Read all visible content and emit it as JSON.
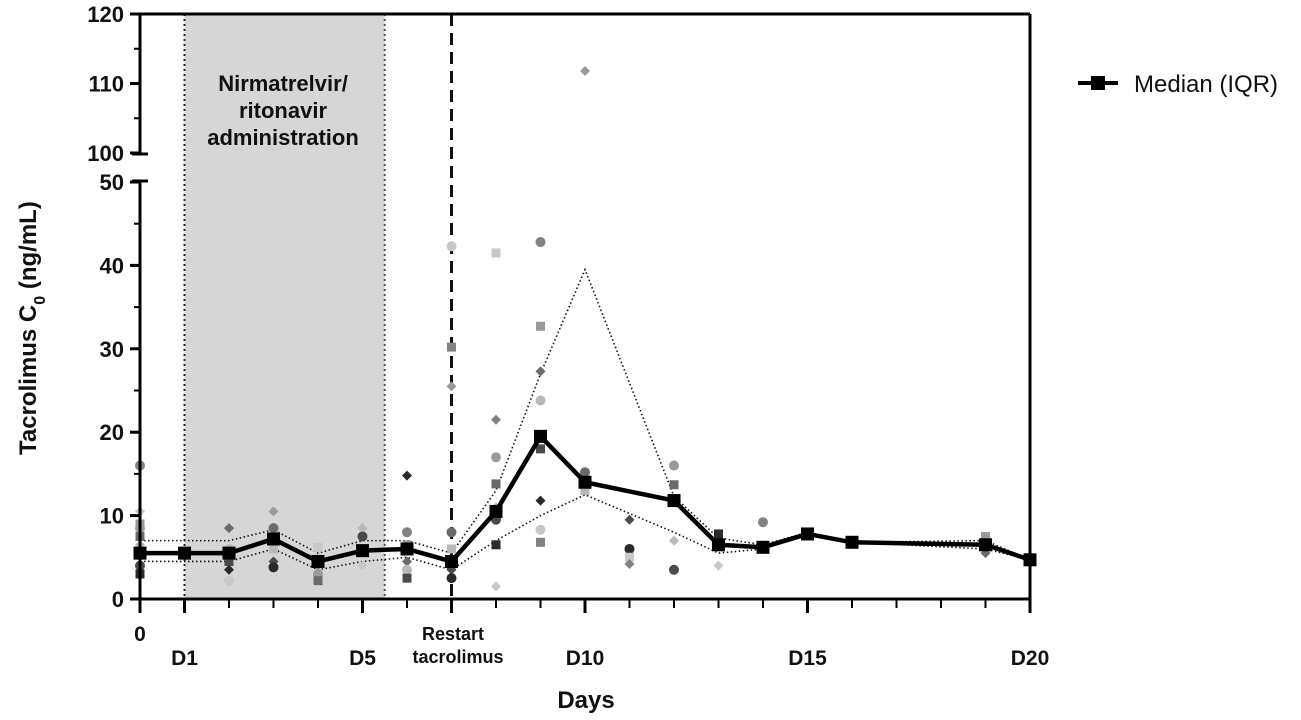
{
  "chart_data": {
    "type": "line",
    "xlabel": "Days",
    "ylabel_main": "Tacrolimus C",
    "ylabel_sub": "0",
    "ylabel_unit": " (ng/mL)",
    "x_range": [
      0,
      20
    ],
    "y_range_lower": [
      0,
      50
    ],
    "y_range_upper": [
      100,
      120
    ],
    "y_ticks_lower": [
      "0",
      "10",
      "20",
      "30",
      "40",
      "50"
    ],
    "y_ticks_upper": [
      "100",
      "110",
      "120"
    ],
    "x_tick_labels": [
      {
        "x": 0,
        "text": "0"
      },
      {
        "x": 1,
        "text": "D1"
      },
      {
        "x": 5,
        "text": "D5"
      },
      {
        "x": 10,
        "text": "D10"
      },
      {
        "x": 15,
        "text": "D15"
      },
      {
        "x": 20,
        "text": "D20"
      }
    ],
    "restart_label_line1": "Restart",
    "restart_label_line2": "tacrolimus",
    "restart_day": 7,
    "shaded_range": [
      1,
      5.5
    ],
    "shaded_label_lines": [
      "Nirmatrelvir/",
      "ritonavir",
      "administration"
    ],
    "legend": {
      "label": "Median (IQR)",
      "position": "top-right"
    },
    "median": {
      "x": [
        0,
        1,
        2,
        3,
        4,
        5,
        6,
        7,
        8,
        9,
        10,
        12,
        13,
        14,
        15,
        16,
        19,
        20
      ],
      "y": [
        5.5,
        5.5,
        5.5,
        7.2,
        4.5,
        5.8,
        6.0,
        4.5,
        10.5,
        19.5,
        14.0,
        11.8,
        6.5,
        6.2,
        7.8,
        6.8,
        6.5,
        4.7
      ]
    },
    "iqr_upper": {
      "x": [
        0,
        2,
        3,
        4,
        5,
        6,
        7,
        8,
        9,
        10,
        12,
        13,
        14,
        15,
        16,
        19,
        20
      ],
      "y": [
        7.0,
        7.0,
        8.3,
        5.5,
        7.0,
        7.0,
        5.5,
        13.0,
        27.0,
        39.5,
        12.3,
        7.3,
        6.5,
        8.0,
        6.8,
        7.0,
        4.7
      ]
    },
    "iqr_lower": {
      "x": [
        0,
        2,
        3,
        4,
        5,
        6,
        7,
        8,
        9,
        10,
        12,
        13,
        14,
        15,
        16,
        19,
        20
      ],
      "y": [
        4.5,
        4.5,
        6.0,
        3.5,
        4.5,
        5.0,
        3.5,
        7.0,
        10.0,
        12.5,
        8.0,
        5.5,
        6.0,
        7.8,
        6.8,
        6.0,
        4.7
      ]
    },
    "individual_points": [
      {
        "x": 0,
        "y": 8.5
      },
      {
        "x": 0,
        "y": 7.5
      },
      {
        "x": 0,
        "y": 6.5
      },
      {
        "x": 0,
        "y": 4.0
      },
      {
        "x": 0,
        "y": 3.0
      },
      {
        "x": 0,
        "y": 10.5
      },
      {
        "x": 0,
        "y": 16.0
      },
      {
        "x": 0,
        "y": 9.0
      },
      {
        "x": 2,
        "y": 8.5
      },
      {
        "x": 2,
        "y": 6.0
      },
      {
        "x": 2,
        "y": 4.5
      },
      {
        "x": 2,
        "y": 3.5
      },
      {
        "x": 2,
        "y": 2.2
      },
      {
        "x": 2,
        "y": 5.5
      },
      {
        "x": 3,
        "y": 10.5
      },
      {
        "x": 3,
        "y": 8.5
      },
      {
        "x": 3,
        "y": 6.0
      },
      {
        "x": 3,
        "y": 4.5
      },
      {
        "x": 3,
        "y": 3.8
      },
      {
        "x": 4,
        "y": 6.2
      },
      {
        "x": 4,
        "y": 4.0
      },
      {
        "x": 4,
        "y": 3.0
      },
      {
        "x": 4,
        "y": 2.2
      },
      {
        "x": 5,
        "y": 8.5
      },
      {
        "x": 5,
        "y": 7.5
      },
      {
        "x": 5,
        "y": 6.0
      },
      {
        "x": 5,
        "y": 4.0
      },
      {
        "x": 6,
        "y": 8.0
      },
      {
        "x": 6,
        "y": 6.5
      },
      {
        "x": 6,
        "y": 4.5
      },
      {
        "x": 6,
        "y": 3.5
      },
      {
        "x": 6,
        "y": 2.5
      },
      {
        "x": 6,
        "y": 14.8
      },
      {
        "x": 7,
        "y": 42.3
      },
      {
        "x": 7,
        "y": 30.2
      },
      {
        "x": 7,
        "y": 25.5
      },
      {
        "x": 7,
        "y": 8.0
      },
      {
        "x": 7,
        "y": 6.0
      },
      {
        "x": 7,
        "y": 3.5
      },
      {
        "x": 7,
        "y": 2.5
      },
      {
        "x": 8,
        "y": 41.5
      },
      {
        "x": 8,
        "y": 21.5
      },
      {
        "x": 8,
        "y": 17.0
      },
      {
        "x": 8,
        "y": 13.8
      },
      {
        "x": 8,
        "y": 11.0
      },
      {
        "x": 8,
        "y": 9.5
      },
      {
        "x": 8,
        "y": 6.5
      },
      {
        "x": 8,
        "y": 1.5
      },
      {
        "x": 9,
        "y": 42.8
      },
      {
        "x": 9,
        "y": 32.7
      },
      {
        "x": 9,
        "y": 27.3
      },
      {
        "x": 9,
        "y": 23.8
      },
      {
        "x": 9,
        "y": 18.0
      },
      {
        "x": 9,
        "y": 11.8
      },
      {
        "x": 9,
        "y": 8.3
      },
      {
        "x": 9,
        "y": 6.8
      },
      {
        "x": 10,
        "y": 111.8
      },
      {
        "x": 10,
        "y": 15.2
      },
      {
        "x": 10,
        "y": 13.0
      },
      {
        "x": 11,
        "y": 9.5
      },
      {
        "x": 11,
        "y": 6.0
      },
      {
        "x": 11,
        "y": 5.0
      },
      {
        "x": 11,
        "y": 4.2
      },
      {
        "x": 12,
        "y": 16.0
      },
      {
        "x": 12,
        "y": 13.7
      },
      {
        "x": 12,
        "y": 7.0
      },
      {
        "x": 12,
        "y": 3.5
      },
      {
        "x": 13,
        "y": 7.8
      },
      {
        "x": 13,
        "y": 4.0
      },
      {
        "x": 14,
        "y": 9.2
      },
      {
        "x": 19,
        "y": 7.5
      },
      {
        "x": 19,
        "y": 5.5
      }
    ]
  }
}
